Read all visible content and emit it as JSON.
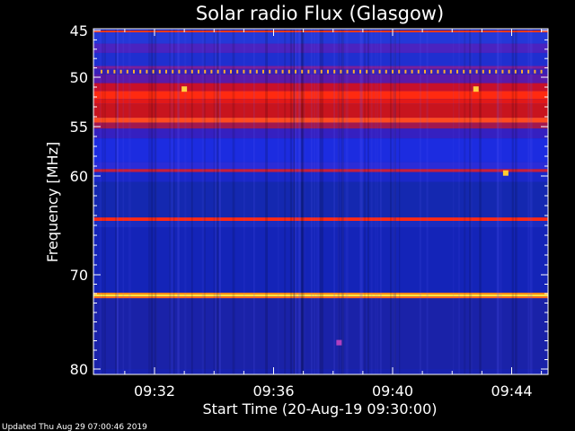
{
  "chart_data": {
    "type": "heatmap",
    "title": "Solar radio Flux (Glasgow)",
    "xlabel": "Start Time (20-Aug-19 09:30:00)",
    "ylabel": "Frequency [MHz]",
    "footer": "Updated Thu Aug 29 07:00:46 2019",
    "x_ticks": [
      "09:32",
      "09:36",
      "09:40",
      "09:44"
    ],
    "y_ticks": [
      "45",
      "50",
      "55",
      "60",
      "70",
      "80"
    ],
    "x_range_minutes": [
      0,
      15.2
    ],
    "y_range_mhz": [
      45,
      80
    ],
    "bands": [
      {
        "from": 45.0,
        "to": 45.2,
        "color": "#ff3a1a"
      },
      {
        "from": 45.2,
        "to": 46.4,
        "color": "#2438d8"
      },
      {
        "from": 46.4,
        "to": 47.4,
        "color": "#4a23c0"
      },
      {
        "from": 47.4,
        "to": 48.8,
        "color": "#1f2fd0"
      },
      {
        "from": 48.8,
        "to": 49.1,
        "color": "#7a1f9a"
      },
      {
        "from": 49.1,
        "to": 49.7,
        "color": "#3a20b8"
      },
      {
        "from": 49.7,
        "to": 50.6,
        "color": "#5a1aa8"
      },
      {
        "from": 50.6,
        "to": 51.4,
        "color": "#c8102a"
      },
      {
        "from": 51.4,
        "to": 52.2,
        "color": "#ff2a10"
      },
      {
        "from": 52.2,
        "to": 52.7,
        "color": "#e21818"
      },
      {
        "from": 52.7,
        "to": 54.1,
        "color": "#c8141e"
      },
      {
        "from": 54.1,
        "to": 54.6,
        "color": "#ff4a20"
      },
      {
        "from": 54.6,
        "to": 55.2,
        "color": "#a01850"
      },
      {
        "from": 55.2,
        "to": 56.2,
        "color": "#3520c0"
      },
      {
        "from": 56.2,
        "to": 58.6,
        "color": "#1c2ce0"
      },
      {
        "from": 58.6,
        "to": 59.3,
        "color": "#2a2cd8"
      },
      {
        "from": 59.3,
        "to": 59.6,
        "color": "#c81e3c"
      },
      {
        "from": 59.6,
        "to": 60.6,
        "color": "#1a28c8"
      },
      {
        "from": 60.6,
        "to": 64.2,
        "color": "#1428b0"
      },
      {
        "from": 64.2,
        "to": 64.55,
        "color": "#ff2a14"
      },
      {
        "from": 64.55,
        "to": 65.2,
        "color": "#1a2cc0"
      },
      {
        "from": 65.2,
        "to": 71.9,
        "color": "#1424b8"
      },
      {
        "from": 71.9,
        "to": 72.1,
        "color": "#ff8a18"
      },
      {
        "from": 72.1,
        "to": 72.3,
        "color": "#ffea40"
      },
      {
        "from": 72.3,
        "to": 72.5,
        "color": "#ff6a18"
      },
      {
        "from": 72.5,
        "to": 80.0,
        "color": "#1a22a8"
      }
    ],
    "bursts": [
      {
        "t": 3.0,
        "f": 51.2,
        "color": "#ffd040"
      },
      {
        "t": 12.8,
        "f": 51.2,
        "color": "#ffd040"
      },
      {
        "t": 13.8,
        "f": 59.7,
        "color": "#ffcc30"
      },
      {
        "t": 8.2,
        "f": 77.2,
        "color": "#b040c0"
      }
    ],
    "dotted_line_mhz": 49.4,
    "dot_color": "#ffb030"
  }
}
